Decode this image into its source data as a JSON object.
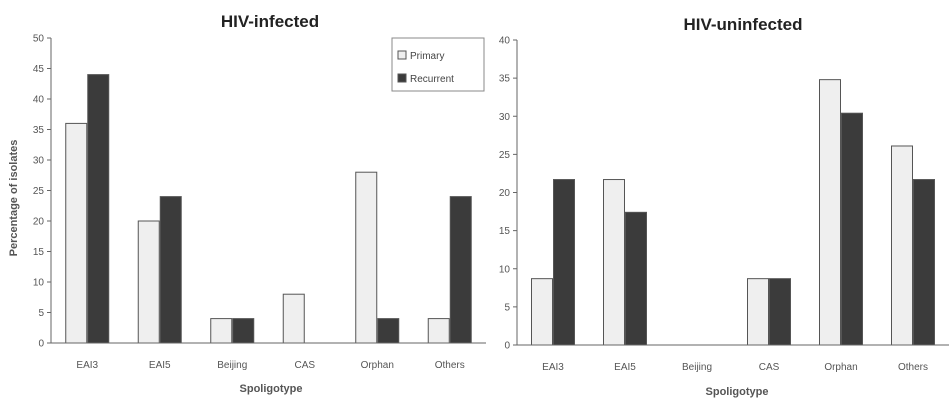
{
  "chart_data": [
    {
      "type": "bar",
      "title": "HIV-infected",
      "xlabel": "Spoligotype",
      "ylabel": "Percentage of isolates",
      "categories": [
        "EAI3",
        "EAI5",
        "Beijing",
        "CAS",
        "Orphan",
        "Others"
      ],
      "ylim": [
        0,
        50
      ],
      "yticks": [
        0,
        5,
        10,
        15,
        20,
        25,
        30,
        35,
        40,
        45,
        50
      ],
      "legend_position": "top-right",
      "series": [
        {
          "name": "Primary",
          "values": [
            36,
            20,
            4,
            8,
            28,
            4
          ],
          "color": "#efefef"
        },
        {
          "name": "Recurrent",
          "values": [
            44,
            24,
            4,
            0,
            4,
            24
          ],
          "color": "#3b3b3b"
        }
      ]
    },
    {
      "type": "bar",
      "title": "HIV-uninfected",
      "xlabel": "Spoligotype",
      "ylabel": "",
      "categories": [
        "EAI3",
        "EAI5",
        "Beijing",
        "CAS",
        "Orphan",
        "Others"
      ],
      "ylim": [
        0,
        40
      ],
      "yticks": [
        0,
        5,
        10,
        15,
        20,
        25,
        30,
        35,
        40
      ],
      "series": [
        {
          "name": "Primary",
          "values": [
            8.7,
            21.7,
            0,
            8.7,
            34.8,
            26.1
          ],
          "color": "#efefef"
        },
        {
          "name": "Recurrent",
          "values": [
            21.7,
            17.4,
            0,
            8.7,
            30.4,
            21.7
          ],
          "color": "#3b3b3b"
        }
      ]
    }
  ],
  "legend": {
    "items": [
      {
        "label": "Primary",
        "color": "#efefef"
      },
      {
        "label": "Recurrent",
        "color": "#3b3b3b"
      }
    ]
  },
  "colors": {
    "axis": "#666666",
    "bar_stroke": "#555555"
  }
}
